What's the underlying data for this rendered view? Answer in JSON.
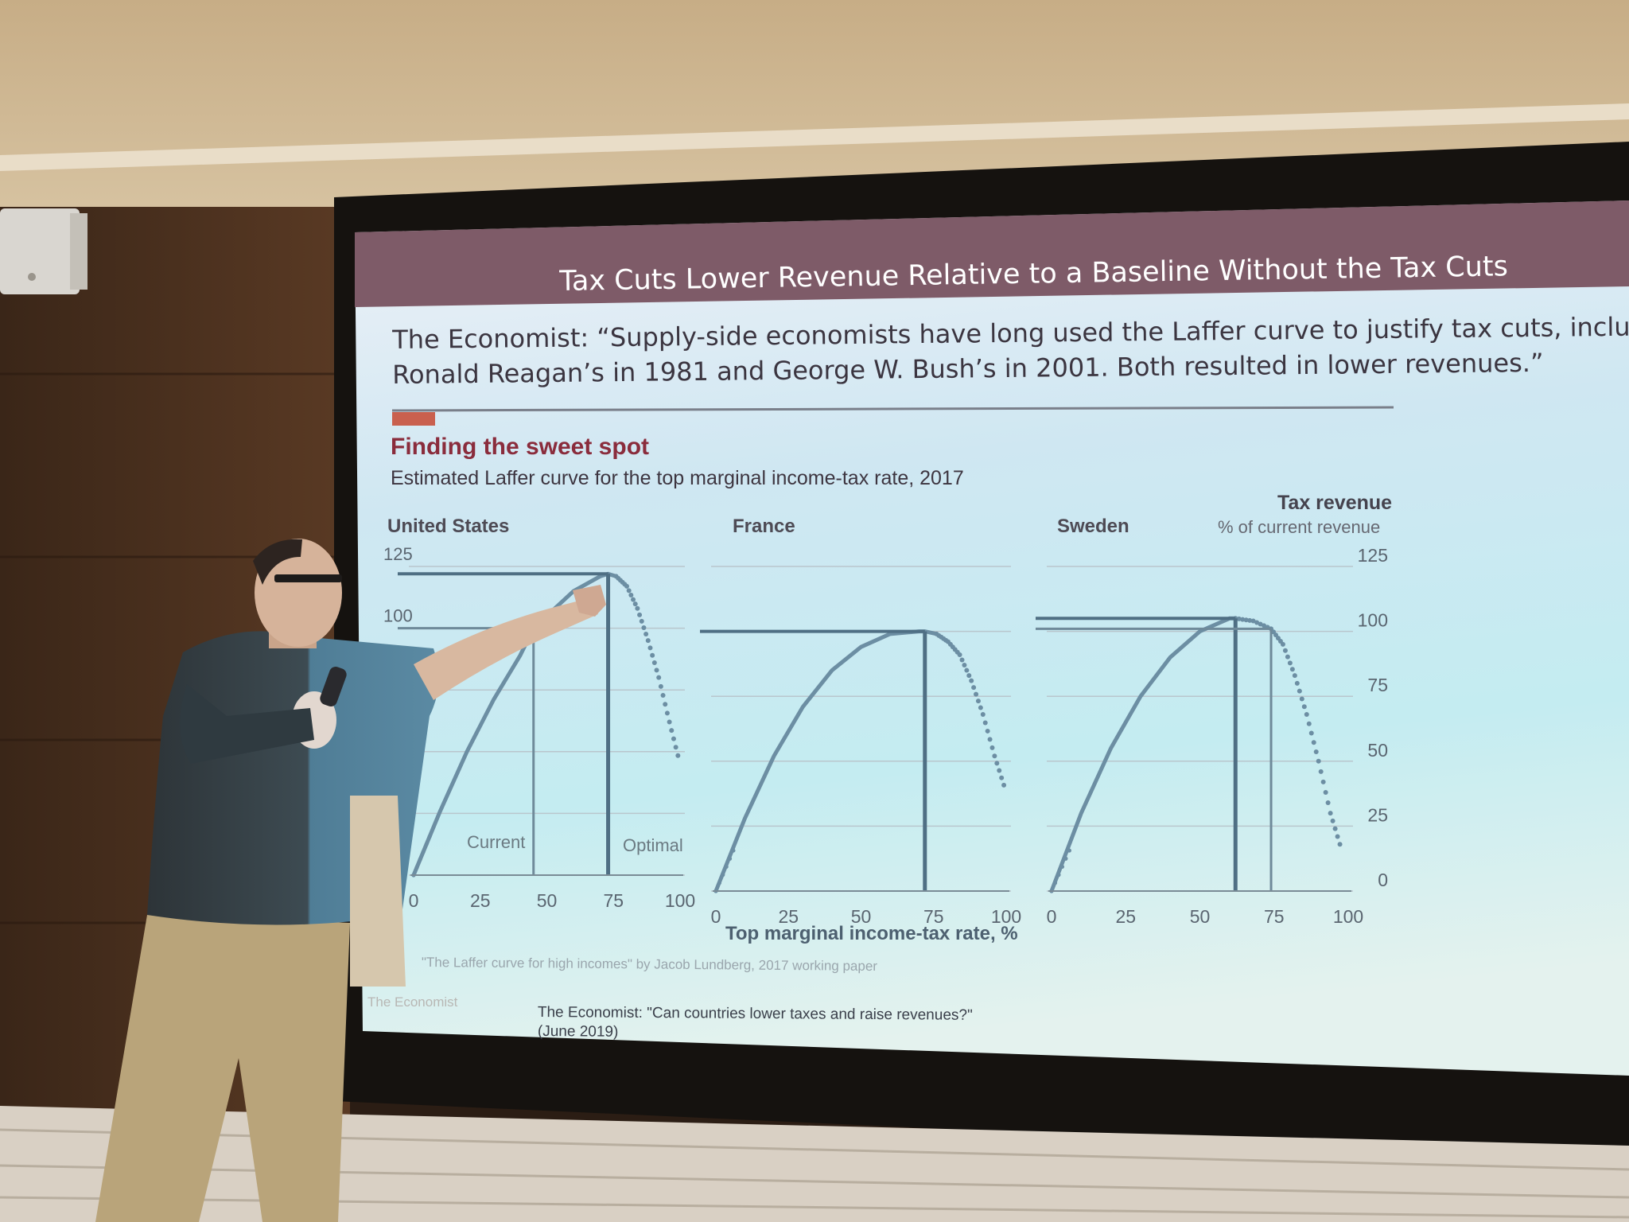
{
  "slide": {
    "title": "Tax Cuts Lower Revenue Relative to a Baseline Without the Tax Cuts",
    "quote_line1": "The Economist:  “Supply-side economists have long used the Laffer curve to justify tax cuts, inclu",
    "quote_line2": "Ronald Reagan’s in 1981 and George W. Bush’s in 2001. Both resulted in lower revenues.”",
    "citation_line1": "The Economist:  \"Can countries lower taxes and raise revenues?\"",
    "citation_line2": "(June 2019)",
    "logo_text": "The Economist",
    "colors": {
      "title_bar": "#7e5b68",
      "accent": "#c9604e",
      "curve": "#6c8ea3"
    }
  },
  "chart_data": {
    "type": "line",
    "title": "Finding the sweet spot",
    "subtitle": "Estimated Laffer curve for the top marginal income-tax rate, 2017",
    "xlabel": "Top marginal income-tax rate, %",
    "ylabel": "Tax revenue",
    "ylabel_sub": "% of current revenue",
    "xticks": [
      "0",
      "25",
      "50",
      "75",
      "100"
    ],
    "yticks": [
      "0",
      "25",
      "50",
      "75",
      "100",
      "125"
    ],
    "xlim": [
      0,
      100
    ],
    "ylim": [
      0,
      125
    ],
    "source": "\"The Laffer curve for high incomes\" by Jacob Lundberg, 2017 working paper",
    "panels": [
      {
        "name": "United States",
        "current_label": "Current",
        "optimal_label": "Optimal",
        "current": 45,
        "optimal": 73,
        "x": [
          0,
          10,
          20,
          30,
          40,
          45,
          50,
          60,
          70,
          73,
          76,
          80,
          84,
          88,
          92,
          96,
          100
        ],
        "y": [
          0,
          26,
          50,
          71,
          89,
          100,
          105,
          115,
          121,
          122,
          121,
          117,
          108,
          95,
          80,
          62,
          45
        ]
      },
      {
        "name": "France",
        "current": 72,
        "optimal": 72,
        "x": [
          0,
          10,
          20,
          30,
          40,
          50,
          60,
          70,
          72,
          76,
          80,
          84,
          88,
          92,
          96,
          100
        ],
        "y": [
          0,
          28,
          52,
          71,
          85,
          94,
          99,
          100,
          100,
          99,
          96,
          91,
          81,
          68,
          52,
          38
        ]
      },
      {
        "name": "Sweden",
        "current": 74,
        "optimal": 62,
        "x": [
          0,
          10,
          20,
          30,
          40,
          50,
          60,
          62,
          68,
          74,
          78,
          82,
          86,
          90,
          94,
          98
        ],
        "y": [
          0,
          30,
          55,
          75,
          90,
          100,
          105,
          105,
          104,
          101,
          95,
          83,
          68,
          50,
          30,
          15
        ]
      }
    ]
  }
}
